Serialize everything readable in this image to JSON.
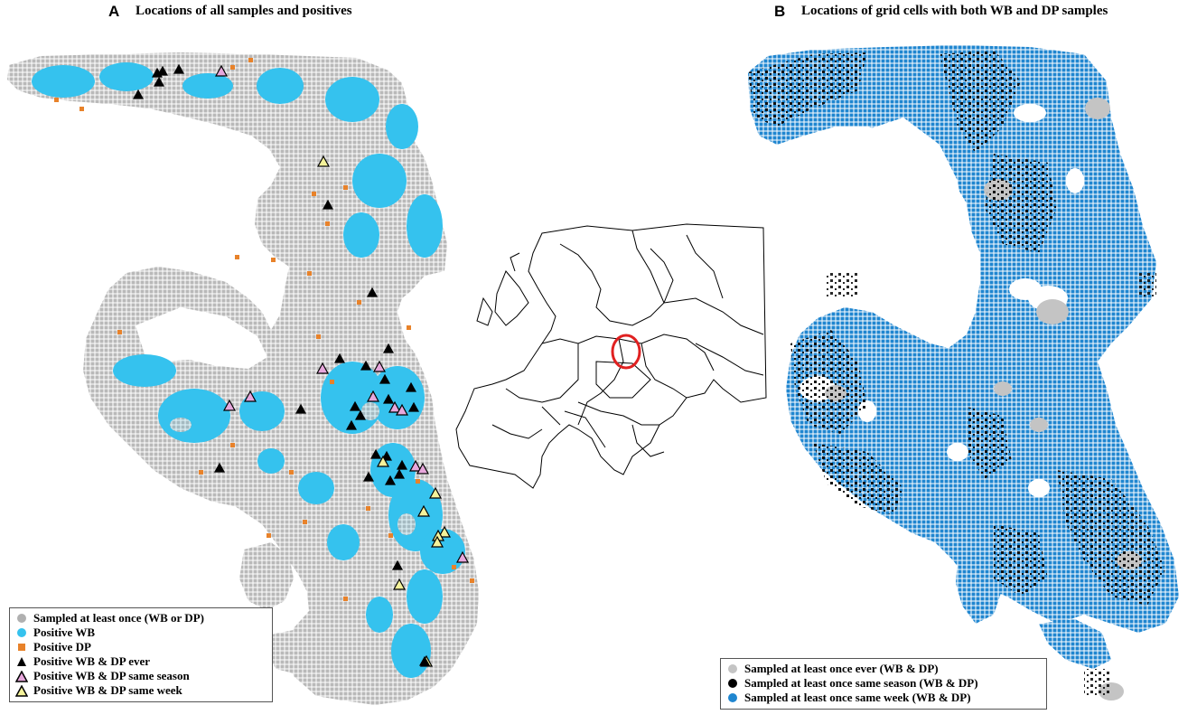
{
  "panel_a": {
    "letter": "A",
    "title": "Locations of all samples and positives",
    "legend": [
      {
        "symbol": "grey-circle",
        "color": "#b0b0b0",
        "label": "Sampled at least once (WB or DP)"
      },
      {
        "symbol": "cyan-circle",
        "color": "#35c2ee",
        "label": "Positive WB"
      },
      {
        "symbol": "orange-square",
        "color": "#e8822a",
        "label": "Positive DP"
      },
      {
        "symbol": "black-triangle",
        "color": "#000000",
        "label": "Positive WB & DP ever"
      },
      {
        "symbol": "pink-triangle",
        "color": "#e7a7dc",
        "label": "Positive WB & DP same season"
      },
      {
        "symbol": "yellow-triangle",
        "color": "#f4f29a",
        "label": "Positive WB & DP same week"
      }
    ]
  },
  "panel_b": {
    "letter": "B",
    "title": "Locations of grid cells with both WB and DP samples",
    "legend": [
      {
        "symbol": "grey-circle",
        "color": "#c4c4c4",
        "label": "Sampled at least once ever (WB & DP)"
      },
      {
        "symbol": "black-circle",
        "color": "#000000",
        "label": "Sampled at least once same season (WB & DP)"
      },
      {
        "symbol": "blue-circle",
        "color": "#1f86d0",
        "label": "Sampled at least once same week (WB & DP)"
      }
    ]
  },
  "inset": {
    "highlight_color": "#e02020"
  }
}
